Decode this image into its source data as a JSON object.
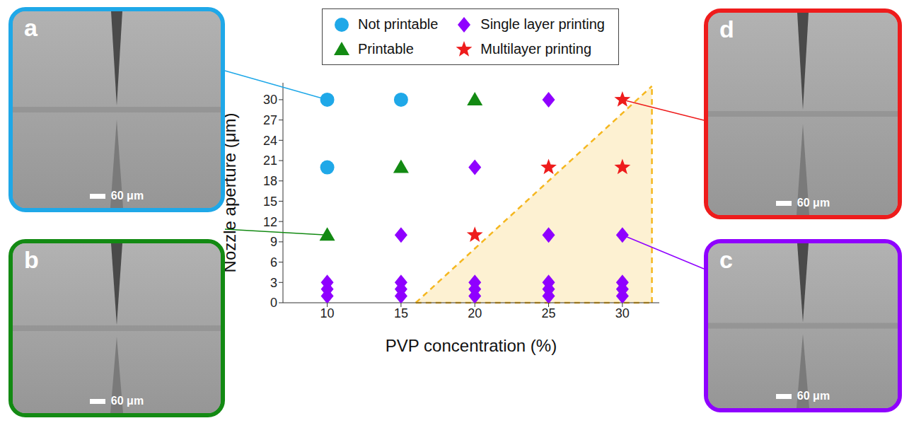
{
  "chart_data": {
    "type": "scatter",
    "x_label": "PVP concentration (%)",
    "y_label": "Nozzle aperture (μm)",
    "xlim": [
      7,
      32.5
    ],
    "ylim": [
      0,
      32.5
    ],
    "xticks": [
      10,
      15,
      20,
      25,
      30
    ],
    "yticks": [
      0,
      3,
      6,
      9,
      12,
      15,
      18,
      21,
      24,
      27,
      30
    ],
    "grid": false,
    "legend": "top",
    "series": [
      {
        "name": "Not printable",
        "color": "#1fa8e8",
        "marker": "circle",
        "x": [
          10,
          15,
          10
        ],
        "values": [
          30,
          30,
          20
        ]
      },
      {
        "name": "Printable",
        "color": "#138a13",
        "marker": "triangle",
        "x": [
          20,
          15,
          10
        ],
        "values": [
          30,
          20,
          10
        ]
      },
      {
        "name": "Single layer printing",
        "color": "#8f00ff",
        "marker": "diamond",
        "x": [
          25,
          20,
          15,
          25,
          30,
          10,
          10,
          10,
          15,
          15,
          15,
          20,
          20,
          20,
          25,
          25,
          25,
          30,
          30,
          30
        ],
        "values": [
          30,
          20,
          10,
          10,
          10,
          3,
          2,
          1,
          3,
          2,
          1,
          3,
          2,
          1,
          3,
          2,
          1,
          3,
          2,
          1
        ]
      },
      {
        "name": "Multilayer printing",
        "color": "#ee1c1c",
        "marker": "star",
        "x": [
          30,
          25,
          30,
          20
        ],
        "values": [
          30,
          20,
          20,
          10
        ]
      }
    ],
    "region": {
      "x": [
        16,
        32
      ],
      "values": [
        0,
        32
      ],
      "color": "#f5b71f",
      "line_style": "dashed"
    }
  },
  "panels": [
    {
      "label": "a",
      "category": "Not printable",
      "x": 10,
      "y": 30,
      "scale_bar": "60 μm"
    },
    {
      "label": "b",
      "category": "Printable",
      "x": 10,
      "y": 10,
      "scale_bar": "60 μm"
    },
    {
      "label": "c",
      "category": "Single layer printing",
      "x": 30,
      "y": 10,
      "scale_bar": "60 μm"
    },
    {
      "label": "d",
      "category": "Multilayer printing",
      "x": 30,
      "y": 30,
      "scale_bar": "60 μm"
    }
  ]
}
